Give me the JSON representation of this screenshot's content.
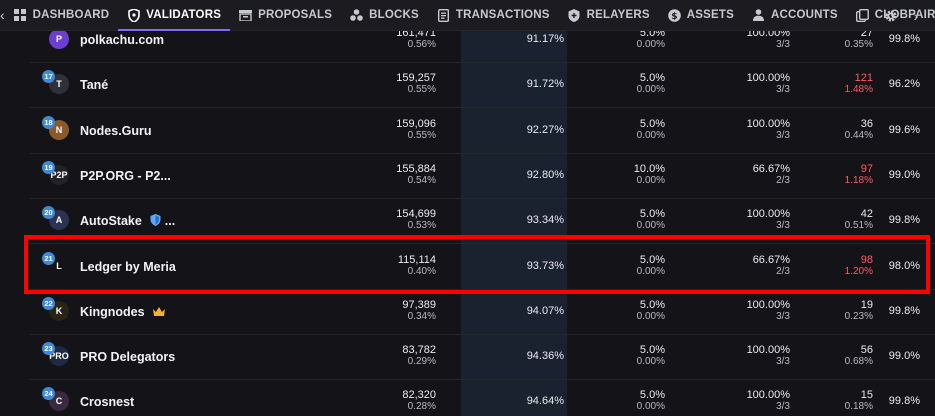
{
  "nav": {
    "tabs": [
      {
        "label": "DASHBOARD",
        "icon": "dashboard-icon"
      },
      {
        "label": "VALIDATORS",
        "icon": "shield-icon",
        "active": true
      },
      {
        "label": "PROPOSALS",
        "icon": "proposals-icon"
      },
      {
        "label": "BLOCKS",
        "icon": "blocks-icon"
      },
      {
        "label": "TRANSACTIONS",
        "icon": "transactions-icon"
      },
      {
        "label": "RELAYERS",
        "icon": "relayers-icon"
      },
      {
        "label": "ASSETS",
        "icon": "assets-icon"
      },
      {
        "label": "ACCOUNTS",
        "icon": "accounts-icon"
      },
      {
        "label": "CLOBPAIRS",
        "icon": "clobpairs-icon"
      }
    ]
  },
  "validators": [
    {
      "rank": "",
      "name": "polkachu.com",
      "avatar": "P",
      "avatar_color": "#6a3fd1",
      "stake": "161,471",
      "stake_pct": "0.56%",
      "cumulative": "91.17%",
      "commission": "5.0%",
      "commission_change": "0.00%",
      "uptime": "100.00%",
      "uptime_sub": "3/3",
      "missed": "27",
      "missed_pct": "0.35%",
      "missed_red": false,
      "last": "99.8%"
    },
    {
      "rank": "17",
      "name": "Tané",
      "avatar": "T",
      "avatar_color": "#30303a",
      "stake": "159,257",
      "stake_pct": "0.55%",
      "cumulative": "91.72%",
      "commission": "5.0%",
      "commission_change": "0.00%",
      "uptime": "100.00%",
      "uptime_sub": "3/3",
      "missed": "121",
      "missed_pct": "1.48%",
      "missed_red": true,
      "last": "96.2%"
    },
    {
      "rank": "18",
      "name": "Nodes.Guru",
      "avatar": "N",
      "avatar_color": "#8a5a2a",
      "stake": "159,096",
      "stake_pct": "0.55%",
      "cumulative": "92.27%",
      "commission": "5.0%",
      "commission_change": "0.00%",
      "uptime": "100.00%",
      "uptime_sub": "3/3",
      "missed": "36",
      "missed_pct": "0.44%",
      "missed_red": false,
      "last": "99.6%"
    },
    {
      "rank": "19",
      "name": "P2P.ORG - P2...",
      "avatar": "P2P",
      "avatar_color": "#222228",
      "stake": "155,884",
      "stake_pct": "0.54%",
      "cumulative": "92.80%",
      "commission": "10.0%",
      "commission_change": "0.00%",
      "uptime": "66.67%",
      "uptime_sub": "2/3",
      "missed": "97",
      "missed_pct": "1.18%",
      "missed_red": true,
      "last": "99.0%"
    },
    {
      "rank": "20",
      "name": "AutoStake",
      "name_suffix": "...",
      "avatar": "A",
      "avatar_color": "#2c3350",
      "stake": "154,699",
      "stake_pct": "0.53%",
      "cumulative": "93.34%",
      "commission": "5.0%",
      "commission_change": "0.00%",
      "uptime": "100.00%",
      "uptime_sub": "3/3",
      "missed": "42",
      "missed_pct": "0.51%",
      "missed_red": false,
      "last": "99.8%"
    },
    {
      "rank": "21",
      "name": "Ledger by Meria",
      "avatar": "L",
      "avatar_color": "#141418",
      "stake": "115,114",
      "stake_pct": "0.40%",
      "cumulative": "93.73%",
      "commission": "5.0%",
      "commission_change": "0.00%",
      "uptime": "66.67%",
      "uptime_sub": "2/3",
      "missed": "98",
      "missed_pct": "1.20%",
      "missed_red": true,
      "last": "98.0%"
    },
    {
      "rank": "22",
      "name": "Kingnodes",
      "avatar": "K",
      "avatar_color": "#2a2416",
      "stake": "97,389",
      "stake_pct": "0.34%",
      "cumulative": "94.07%",
      "commission": "5.0%",
      "commission_change": "0.00%",
      "uptime": "100.00%",
      "uptime_sub": "3/3",
      "missed": "19",
      "missed_pct": "0.23%",
      "missed_red": false,
      "last": "99.8%"
    },
    {
      "rank": "23",
      "name": "PRO Delegators",
      "avatar": "PRO",
      "avatar_color": "#1e2a44",
      "stake": "83,782",
      "stake_pct": "0.29%",
      "cumulative": "94.36%",
      "commission": "5.0%",
      "commission_change": "0.00%",
      "uptime": "100.00%",
      "uptime_sub": "3/3",
      "missed": "56",
      "missed_pct": "0.68%",
      "missed_red": false,
      "last": "99.0%"
    },
    {
      "rank": "24",
      "name": "Crosnest",
      "avatar": "C",
      "avatar_color": "#3a2a3e",
      "stake": "82,320",
      "stake_pct": "0.28%",
      "cumulative": "94.64%",
      "commission": "5.0%",
      "commission_change": "0.00%",
      "uptime": "100.00%",
      "uptime_sub": "3/3",
      "missed": "15",
      "missed_pct": "0.18%",
      "missed_red": false,
      "last": "99.8%"
    }
  ]
}
